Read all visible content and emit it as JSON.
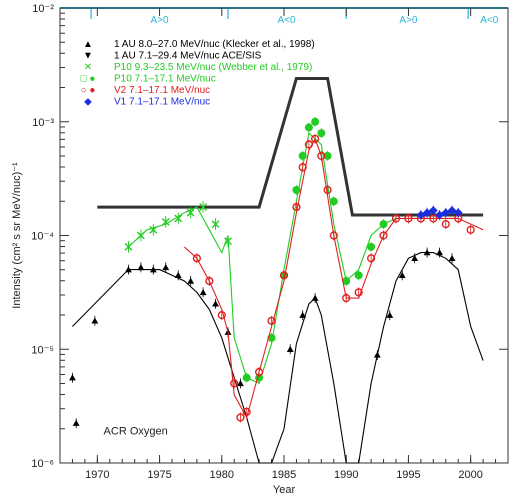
{
  "chart_data": {
    "type": "scatter",
    "title": "",
    "xlabel": "Year",
    "ylabel": "Intensity (cm² s sr MeV/nuc)⁻¹",
    "xlim": [
      1967,
      2003
    ],
    "ylim": [
      -6,
      -2
    ],
    "yscale": "log",
    "x_ticks": [
      1970,
      1975,
      1980,
      1985,
      1990,
      1995,
      2000
    ],
    "x_tick_labels": [
      "1970",
      "1975",
      "1980",
      "1985",
      "1990",
      "1995",
      "2000"
    ],
    "y_ticks": [
      -6,
      -5,
      -4,
      -3,
      -2
    ],
    "y_tick_labels": [
      "10⁻⁶",
      "10⁻⁵",
      "10⁻⁴",
      "10⁻³",
      "10⁻²"
    ],
    "annotation": "ACR Oxygen",
    "polarity": {
      "color": "#2bb5d8",
      "boundaries": [
        1969.5,
        1980.5,
        1990.0,
        1999.8
      ],
      "labels": [
        {
          "text": "A>0",
          "x": 1975.0
        },
        {
          "text": "A<0",
          "x": 1985.2
        },
        {
          "text": "A>0",
          "x": 1995.0
        },
        {
          "text": "A<0",
          "x": 2001.5
        }
      ]
    },
    "legend": [
      {
        "symbol": "▲",
        "color": "#000000",
        "label": "1 AU 8.0–27.0 MeV/nuc (Klecker et al., 1998)"
      },
      {
        "symbol": "▼",
        "color": "#000000",
        "label": "1 AU 7.1–29.4 MeV/nuc ACE/SIS"
      },
      {
        "symbol": "✕",
        "color": "#22cc22",
        "label": "P10 9.3–23.5 MeV/nuc (Webber et al., 1979)"
      },
      {
        "symbol": "□ ●",
        "color": "#22cc22",
        "label": "P10 7.1–17.1 MeV/nuc"
      },
      {
        "symbol": "○ ●",
        "color": "#e02020",
        "label": "V2 7.1–17.1 MeV/nuc"
      },
      {
        "symbol": "◆",
        "color": "#1a2fe0",
        "label": "V1 7.1–17.1 MeV/nuc"
      }
    ],
    "series": [
      {
        "color": "#333333",
        "style": "thick-line",
        "x": [
          1970,
          1983.0,
          1986.0,
          1988.5,
          1990.5,
          2001
        ],
        "y": [
          -3.75,
          -3.75,
          -2.62,
          -2.62,
          -3.82,
          -3.82
        ]
      },
      {
        "color": "#000000",
        "style": "line",
        "x": [
          1968,
          1972.5,
          1973,
          1974,
          1975,
          1976,
          1977,
          1978,
          1979,
          1980,
          1981,
          1982,
          1983,
          1984,
          1985,
          1986,
          1987,
          1987.5,
          1988,
          1989,
          1990,
          1991,
          1992,
          1993,
          1994,
          1995,
          1996,
          1997,
          1998,
          1999,
          2000,
          2001
        ],
        "y": [
          -4.8,
          -4.3,
          -4.3,
          -4.3,
          -4.3,
          -4.35,
          -4.4,
          -4.5,
          -4.65,
          -4.9,
          -5.25,
          -5.6,
          -6.0,
          -6.2,
          -5.7,
          -4.95,
          -4.6,
          -4.55,
          -4.7,
          -5.3,
          -6.1,
          -6.2,
          -5.3,
          -4.8,
          -4.4,
          -4.2,
          -4.15,
          -4.15,
          -4.2,
          -4.3,
          -4.8,
          -5.1
        ]
      },
      {
        "color": "#000000",
        "style": "points",
        "marker": "triangle-up",
        "x": [
          1968,
          1968.3,
          1969.8,
          1972.5,
          1973.5,
          1974.5,
          1975.5,
          1976.5,
          1977.5,
          1978.5,
          1979.5,
          1980.5,
          1981.5,
          1985.5,
          1986.5,
          1987.5,
          1992.5,
          1993.5,
          1994.5,
          1995.5,
          1996.5,
          1997.5,
          1998.5
        ],
        "y": [
          -5.25,
          -5.65,
          -4.75,
          -4.3,
          -4.28,
          -4.3,
          -4.28,
          -4.35,
          -4.4,
          -4.5,
          -4.6,
          -4.85,
          -5.3,
          -5.0,
          -4.7,
          -4.55,
          -5.05,
          -4.7,
          -4.35,
          -4.2,
          -4.15,
          -4.15,
          -4.2
        ]
      },
      {
        "color": "#22cc22",
        "style": "line",
        "x": [
          1972.5,
          1974,
          1975.5,
          1977,
          1978,
          1979,
          1980,
          1980.5,
          1981,
          1982,
          1983,
          1984,
          1985,
          1986,
          1987,
          1988,
          1989,
          1990,
          1991,
          1992,
          1993,
          1994
        ],
        "y": [
          -4.1,
          -3.95,
          -3.9,
          -3.8,
          -3.75,
          -3.95,
          -4.15,
          -4.0,
          -4.9,
          -5.25,
          -5.3,
          -4.95,
          -4.3,
          -3.7,
          -3.1,
          -3.2,
          -3.9,
          -4.4,
          -4.3,
          -4.0,
          -3.9,
          -3.85
        ]
      },
      {
        "color": "#22cc22",
        "style": "points",
        "marker": "cross",
        "x": [
          1972.5,
          1973.5,
          1974.5,
          1975.5,
          1976.5,
          1977.5,
          1978.5,
          1979.5,
          1980.5
        ],
        "y": [
          -4.1,
          -4.0,
          -3.95,
          -3.88,
          -3.85,
          -3.8,
          -3.75,
          -3.9,
          -4.05
        ]
      },
      {
        "color": "#22cc22",
        "style": "points",
        "marker": "circle-filled",
        "x": [
          1982,
          1983,
          1984,
          1985,
          1986,
          1986.5,
          1987,
          1987.5,
          1988,
          1988.5,
          1989,
          1990,
          1991,
          1992,
          1993
        ],
        "y": [
          -5.25,
          -5.25,
          -4.9,
          -4.35,
          -3.6,
          -3.3,
          -3.05,
          -3.0,
          -3.1,
          -3.3,
          -3.7,
          -4.4,
          -4.35,
          -4.1,
          -3.9
        ]
      },
      {
        "color": "#e02020",
        "style": "line",
        "x": [
          1977,
          1978,
          1979,
          1980,
          1980.5,
          1981,
          1982,
          1983,
          1984,
          1985,
          1986,
          1987,
          1987.5,
          1988,
          1989,
          1990,
          1991,
          1992,
          1993,
          1994,
          1995,
          1996,
          1997,
          1998,
          1999,
          2000,
          2001
        ],
        "y": [
          -4.1,
          -4.2,
          -4.4,
          -4.65,
          -4.85,
          -5.4,
          -5.6,
          -5.2,
          -4.8,
          -4.4,
          -3.8,
          -3.25,
          -3.15,
          -3.3,
          -4.0,
          -4.55,
          -4.55,
          -4.25,
          -4.0,
          -3.85,
          -3.85,
          -3.85,
          -3.85,
          -3.85,
          -3.85,
          -3.9,
          -3.95
        ]
      },
      {
        "color": "#e02020",
        "style": "points",
        "marker": "circle",
        "x": [
          1978,
          1979,
          1980,
          1981,
          1981.5,
          1982,
          1983,
          1984,
          1985,
          1986,
          1986.5,
          1987,
          1987.5,
          1988,
          1988.5,
          1989,
          1990,
          1991,
          1992,
          1993,
          1994,
          1995,
          1996,
          1997,
          1998,
          1999,
          2000
        ],
        "y": [
          -4.2,
          -4.4,
          -4.7,
          -5.3,
          -5.6,
          -5.55,
          -5.2,
          -4.75,
          -4.35,
          -3.75,
          -3.4,
          -3.2,
          -3.15,
          -3.3,
          -3.6,
          -4.0,
          -4.55,
          -4.5,
          -4.2,
          -4.0,
          -3.85,
          -3.85,
          -3.85,
          -3.85,
          -3.9,
          -3.85,
          -3.95
        ]
      },
      {
        "color": "#1a2fe0",
        "style": "points",
        "marker": "diamond",
        "x": [
          1996.0,
          1996.5,
          1997,
          1997.5,
          1998,
          1998.5,
          1999
        ],
        "y": [
          -3.82,
          -3.8,
          -3.78,
          -3.82,
          -3.8,
          -3.78,
          -3.8
        ]
      }
    ]
  }
}
